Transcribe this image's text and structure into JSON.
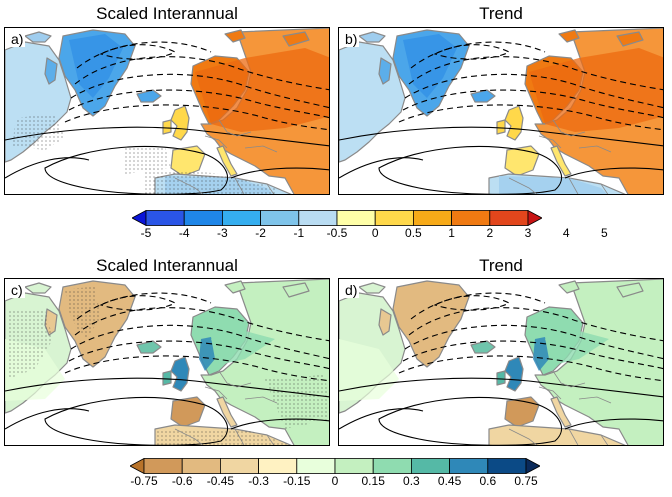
{
  "panels": [
    {
      "id": "a",
      "label": "a)",
      "title": "Scaled Interannual",
      "kind": "temp",
      "stipple": true
    },
    {
      "id": "b",
      "label": "b)",
      "title": "Trend",
      "kind": "temp",
      "stipple": false
    },
    {
      "id": "c",
      "label": "c)",
      "title": "Scaled Interannual",
      "kind": "precip",
      "stipple": true
    },
    {
      "id": "d",
      "label": "d)",
      "title": "Trend",
      "kind": "precip",
      "stipple": false
    }
  ],
  "colorbars": {
    "temp": {
      "ticks": [
        "-5",
        "-4",
        "-3",
        "-2",
        "-1",
        "-0.5",
        "0",
        "0.5",
        "1",
        "2",
        "3",
        "4",
        "5"
      ],
      "colors": [
        "#0a14d8",
        "#2a55e6",
        "#1f86e8",
        "#35aeef",
        "#7fc4ea",
        "#b9dcf2",
        "#ffffa8",
        "#ffd84a",
        "#f7aa18",
        "#f07a12",
        "#e2461c",
        "#c81414"
      ]
    },
    "precip": {
      "ticks": [
        "-0.75",
        "-0.6",
        "-0.45",
        "-0.3",
        "-0.15",
        "0",
        "0.15",
        "0.3",
        "0.45",
        "0.6",
        "0.75"
      ],
      "colors": [
        "#b8732a",
        "#d1995a",
        "#e2ba80",
        "#f0d6a2",
        "#fff2c2",
        "#e8ffdc",
        "#c4f0c0",
        "#8fdcb0",
        "#55b9a6",
        "#2f88b8",
        "#0b4a86",
        "#0a2a5a"
      ]
    }
  },
  "palette": {
    "land": "#ffffff",
    "coast": "#8a8a8a",
    "contour": "#000000"
  }
}
